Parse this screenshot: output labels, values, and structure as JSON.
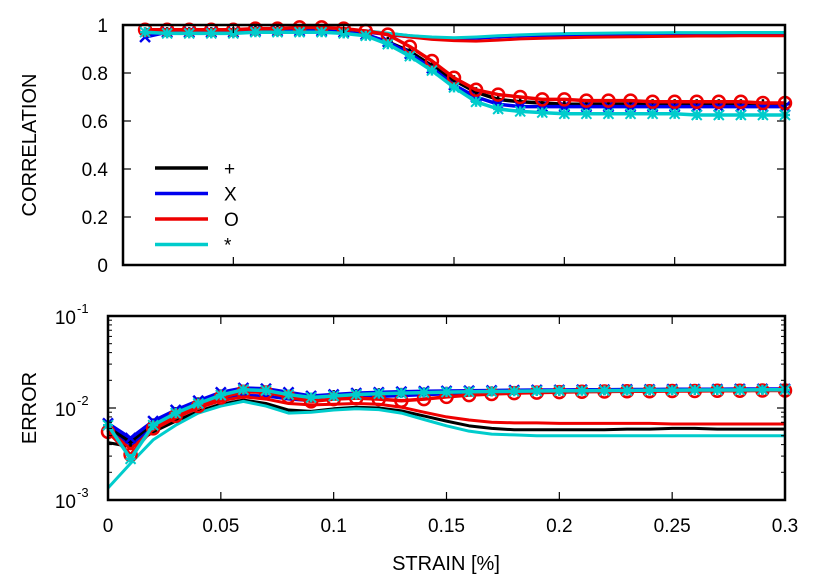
{
  "figure": {
    "top_panel": {
      "ylabel": "CORRELATION",
      "yticks": [
        "0",
        "0.2",
        "0.4",
        "0.6",
        "0.8",
        "1"
      ]
    },
    "bottom_panel": {
      "ylabel": "ERROR",
      "yticks": [
        {
          "base": "10",
          "exp": "-3"
        },
        {
          "base": "10",
          "exp": "-2"
        },
        {
          "base": "10",
          "exp": "-1"
        }
      ]
    },
    "xlabel": "STRAIN [%]",
    "xticks": [
      "0",
      "0.05",
      "0.1",
      "0.15",
      "0.2",
      "0.25",
      "0.3"
    ],
    "legend": [
      {
        "label": "+",
        "color": "#000000"
      },
      {
        "label": "X",
        "color": "#0000ee"
      },
      {
        "label": "O",
        "color": "#ee0000"
      },
      {
        "label": "*",
        "color": "#00cccc"
      }
    ]
  },
  "chart_data": [
    {
      "type": "line",
      "title": "",
      "xlabel": "",
      "ylabel": "CORRELATION",
      "xlim": [
        0,
        0.3
      ],
      "ylim": [
        0,
        1
      ],
      "grid": false,
      "legend_position": "lower left (inside)",
      "x": [
        0.01,
        0.02,
        0.03,
        0.04,
        0.05,
        0.06,
        0.07,
        0.08,
        0.09,
        0.1,
        0.11,
        0.12,
        0.13,
        0.14,
        0.15,
        0.16,
        0.17,
        0.18,
        0.19,
        0.2,
        0.21,
        0.22,
        0.23,
        0.24,
        0.25,
        0.26,
        0.27,
        0.28,
        0.29,
        0.3
      ],
      "series": [
        {
          "name": "+ (markers)",
          "color": "#000000",
          "marker": "+",
          "values": [
            0.97,
            0.97,
            0.97,
            0.97,
            0.97,
            0.975,
            0.975,
            0.975,
            0.975,
            0.97,
            0.96,
            0.93,
            0.89,
            0.83,
            0.77,
            0.72,
            0.69,
            0.68,
            0.675,
            0.67,
            0.67,
            0.67,
            0.67,
            0.67,
            0.67,
            0.67,
            0.67,
            0.67,
            0.67,
            0.67
          ]
        },
        {
          "name": "X (markers)",
          "color": "#0000ee",
          "marker": "X",
          "values": [
            0.95,
            0.97,
            0.97,
            0.97,
            0.97,
            0.975,
            0.975,
            0.975,
            0.975,
            0.97,
            0.96,
            0.93,
            0.88,
            0.82,
            0.75,
            0.7,
            0.67,
            0.66,
            0.66,
            0.66,
            0.66,
            0.66,
            0.66,
            0.66,
            0.66,
            0.66,
            0.66,
            0.66,
            0.66,
            0.66
          ]
        },
        {
          "name": "O (markers)",
          "color": "#ee0000",
          "marker": "O",
          "values": [
            0.98,
            0.98,
            0.98,
            0.98,
            0.98,
            0.985,
            0.985,
            0.99,
            0.99,
            0.985,
            0.975,
            0.96,
            0.91,
            0.85,
            0.78,
            0.73,
            0.71,
            0.7,
            0.69,
            0.69,
            0.685,
            0.685,
            0.685,
            0.68,
            0.68,
            0.68,
            0.68,
            0.68,
            0.675,
            0.675
          ]
        },
        {
          "name": "* (markers)",
          "color": "#00cccc",
          "marker": "*",
          "values": [
            0.97,
            0.965,
            0.965,
            0.965,
            0.965,
            0.97,
            0.97,
            0.97,
            0.97,
            0.965,
            0.955,
            0.92,
            0.87,
            0.81,
            0.74,
            0.68,
            0.65,
            0.64,
            0.635,
            0.63,
            0.63,
            0.63,
            0.63,
            0.63,
            0.63,
            0.625,
            0.625,
            0.625,
            0.625,
            0.625
          ]
        },
        {
          "name": "+ (line)",
          "color": "#000000",
          "marker": "none",
          "values": [
            0.98,
            0.98,
            0.98,
            0.98,
            0.98,
            0.98,
            0.98,
            0.98,
            0.98,
            0.98,
            0.975,
            0.965,
            0.955,
            0.948,
            0.945,
            0.947,
            0.952,
            0.956,
            0.958,
            0.96,
            0.961,
            0.962,
            0.963,
            0.963,
            0.964,
            0.964,
            0.965,
            0.965,
            0.965,
            0.965
          ]
        },
        {
          "name": "X (line)",
          "color": "#0000ee",
          "marker": "none",
          "values": [
            0.975,
            0.975,
            0.975,
            0.975,
            0.975,
            0.975,
            0.975,
            0.975,
            0.975,
            0.975,
            0.97,
            0.96,
            0.95,
            0.944,
            0.942,
            0.945,
            0.95,
            0.954,
            0.956,
            0.958,
            0.96,
            0.96,
            0.961,
            0.962,
            0.962,
            0.963,
            0.963,
            0.963,
            0.964,
            0.964
          ]
        },
        {
          "name": "O (line)",
          "color": "#ee0000",
          "marker": "none",
          "values": [
            0.98,
            0.98,
            0.98,
            0.98,
            0.98,
            0.98,
            0.98,
            0.98,
            0.98,
            0.978,
            0.972,
            0.962,
            0.95,
            0.94,
            0.935,
            0.933,
            0.937,
            0.942,
            0.945,
            0.947,
            0.949,
            0.95,
            0.951,
            0.952,
            0.953,
            0.954,
            0.954,
            0.955,
            0.955,
            0.955
          ]
        },
        {
          "name": "* (line)",
          "color": "#00cccc",
          "marker": "none",
          "values": [
            0.98,
            0.98,
            0.98,
            0.98,
            0.98,
            0.98,
            0.98,
            0.98,
            0.98,
            0.98,
            0.976,
            0.966,
            0.956,
            0.95,
            0.947,
            0.95,
            0.955,
            0.959,
            0.962,
            0.964,
            0.965,
            0.966,
            0.967,
            0.967,
            0.968,
            0.968,
            0.968,
            0.969,
            0.969,
            0.969
          ]
        }
      ]
    },
    {
      "type": "line",
      "title": "",
      "xlabel": "STRAIN [%]",
      "ylabel": "ERROR",
      "xlim": [
        0,
        0.3
      ],
      "ylim": [
        0.001,
        0.1
      ],
      "yscale": "log",
      "grid": false,
      "x": [
        0.0,
        0.01,
        0.02,
        0.03,
        0.04,
        0.05,
        0.06,
        0.07,
        0.08,
        0.09,
        0.1,
        0.11,
        0.12,
        0.13,
        0.14,
        0.15,
        0.16,
        0.17,
        0.18,
        0.19,
        0.2,
        0.21,
        0.22,
        0.23,
        0.24,
        0.25,
        0.26,
        0.27,
        0.28,
        0.29,
        0.3
      ],
      "series": [
        {
          "name": "+ (markers)",
          "color": "#000000",
          "marker": "+",
          "values": [
            0.0062,
            0.0043,
            0.0068,
            0.009,
            0.0115,
            0.014,
            0.0158,
            0.0155,
            0.014,
            0.013,
            0.0138,
            0.0142,
            0.0145,
            0.0146,
            0.0148,
            0.015,
            0.0151,
            0.0152,
            0.0153,
            0.0154,
            0.0154,
            0.0155,
            0.0155,
            0.0156,
            0.0156,
            0.0157,
            0.0157,
            0.0157,
            0.0158,
            0.0158,
            0.0158
          ]
        },
        {
          "name": "X (markers)",
          "color": "#0000ee",
          "marker": "X",
          "values": [
            0.0068,
            0.0047,
            0.0072,
            0.0095,
            0.012,
            0.0148,
            0.0165,
            0.0162,
            0.0148,
            0.0135,
            0.014,
            0.0145,
            0.0148,
            0.015,
            0.0152,
            0.0153,
            0.0154,
            0.0155,
            0.0156,
            0.0157,
            0.0157,
            0.0158,
            0.0158,
            0.0159,
            0.0159,
            0.016,
            0.016,
            0.016,
            0.0161,
            0.0161,
            0.0161
          ]
        },
        {
          "name": "O (markers)",
          "color": "#ee0000",
          "marker": "O",
          "values": [
            0.0055,
            0.0031,
            0.006,
            0.0082,
            0.0105,
            0.013,
            0.015,
            0.0148,
            0.0132,
            0.0118,
            0.0125,
            0.0128,
            0.0125,
            0.012,
            0.0125,
            0.0132,
            0.0138,
            0.0142,
            0.0145,
            0.0147,
            0.0149,
            0.015,
            0.0151,
            0.0152,
            0.0152,
            0.0153,
            0.0153,
            0.0154,
            0.0154,
            0.0155,
            0.0155
          ]
        },
        {
          "name": "* (markers)",
          "color": "#00cccc",
          "marker": "*",
          "values": [
            0.0065,
            0.0028,
            0.0065,
            0.0088,
            0.0112,
            0.0138,
            0.0158,
            0.0155,
            0.014,
            0.013,
            0.0135,
            0.014,
            0.0143,
            0.0145,
            0.0147,
            0.0149,
            0.015,
            0.0151,
            0.0152,
            0.0153,
            0.0154,
            0.0154,
            0.0155,
            0.0155,
            0.0156,
            0.0156,
            0.0157,
            0.0157,
            0.0157,
            0.0158,
            0.0158
          ]
        },
        {
          "name": "+ (line)",
          "color": "#000000",
          "marker": "none",
          "values": [
            0.0042,
            0.0038,
            0.0055,
            0.0072,
            0.0092,
            0.011,
            0.0122,
            0.0112,
            0.0095,
            0.0092,
            0.0098,
            0.0102,
            0.01,
            0.0093,
            0.0082,
            0.0072,
            0.0064,
            0.006,
            0.0058,
            0.0058,
            0.0058,
            0.0058,
            0.0058,
            0.0059,
            0.0059,
            0.006,
            0.006,
            0.0059,
            0.0059,
            0.0059,
            0.0059
          ]
        },
        {
          "name": "X (line)",
          "color": "#0000ee",
          "marker": "none",
          "values": [
            0.006,
            0.004,
            0.0062,
            0.0082,
            0.0105,
            0.0125,
            0.0138,
            0.0135,
            0.0125,
            0.012,
            0.0125,
            0.013,
            0.0133,
            0.0136,
            0.0139,
            0.0142,
            0.0144,
            0.0146,
            0.0148,
            0.0149,
            0.015,
            0.0151,
            0.0152,
            0.0153,
            0.0153,
            0.0154,
            0.0154,
            0.0155,
            0.0155,
            0.0156,
            0.0156
          ]
        },
        {
          "name": "O (line)",
          "color": "#ee0000",
          "marker": "none",
          "values": [
            0.0058,
            0.0036,
            0.0058,
            0.0078,
            0.01,
            0.012,
            0.0132,
            0.0125,
            0.0112,
            0.0108,
            0.011,
            0.0112,
            0.011,
            0.0102,
            0.009,
            0.008,
            0.0074,
            0.007,
            0.0069,
            0.0069,
            0.0068,
            0.0068,
            0.0068,
            0.0068,
            0.0068,
            0.0067,
            0.0067,
            0.0067,
            0.0067,
            0.0067,
            0.0067
          ]
        },
        {
          "name": "* (line)",
          "color": "#00cccc",
          "marker": "none",
          "values": [
            0.00135,
            0.0025,
            0.0045,
            0.0065,
            0.0088,
            0.0105,
            0.0118,
            0.0105,
            0.0088,
            0.009,
            0.0095,
            0.0098,
            0.0096,
            0.0088,
            0.0075,
            0.0064,
            0.0056,
            0.0052,
            0.0051,
            0.005,
            0.005,
            0.005,
            0.005,
            0.005,
            0.005,
            0.005,
            0.005,
            0.005,
            0.005,
            0.005,
            0.005
          ]
        }
      ]
    }
  ]
}
